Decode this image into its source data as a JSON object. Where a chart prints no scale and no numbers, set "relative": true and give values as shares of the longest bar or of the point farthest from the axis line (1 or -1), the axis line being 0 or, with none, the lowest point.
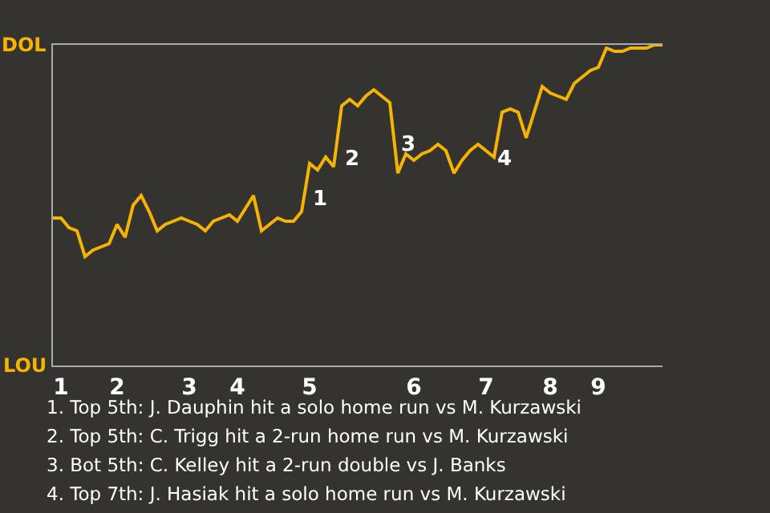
{
  "chart_data": {
    "type": "line",
    "relative": true,
    "categories": [
      null,
      "1",
      null,
      null,
      null,
      null,
      null,
      null,
      "2",
      null,
      null,
      null,
      null,
      null,
      null,
      null,
      null,
      "3",
      null,
      null,
      null,
      null,
      null,
      "4",
      null,
      null,
      null,
      null,
      null,
      null,
      null,
      null,
      "5",
      null,
      null,
      null,
      null,
      null,
      null,
      null,
      null,
      null,
      null,
      null,
      null,
      "6",
      null,
      null,
      null,
      null,
      null,
      null,
      null,
      null,
      "7",
      null,
      null,
      null,
      null,
      null,
      null,
      null,
      "8",
      null,
      null,
      null,
      null,
      null,
      "9",
      null,
      null,
      null,
      null,
      null,
      null,
      null,
      null
    ],
    "series": [
      {
        "color": "#f5b400",
        "values": [
          0.46,
          0.46,
          0.43,
          0.42,
          0.34,
          0.36,
          0.37,
          0.38,
          0.44,
          0.4,
          0.5,
          0.53,
          0.48,
          0.42,
          0.44,
          0.45,
          0.46,
          0.45,
          0.44,
          0.42,
          0.45,
          0.46,
          0.47,
          0.45,
          0.49,
          0.53,
          0.42,
          0.44,
          0.46,
          0.45,
          0.45,
          0.48,
          0.63,
          0.61,
          0.65,
          0.62,
          0.81,
          0.83,
          0.81,
          0.84,
          0.86,
          0.84,
          0.82,
          0.6,
          0.66,
          0.64,
          0.66,
          0.67,
          0.69,
          0.67,
          0.6,
          0.64,
          0.67,
          0.69,
          0.67,
          0.65,
          0.79,
          0.8,
          0.79,
          0.71,
          0.79,
          0.87,
          0.85,
          0.84,
          0.83,
          0.88,
          0.9,
          0.92,
          0.93,
          0.99,
          0.98,
          0.98,
          0.99,
          0.99,
          0.99,
          1,
          1
        ]
      }
    ],
    "marker": "none",
    "line_style": "solid",
    "annotations": [
      "DOL",
      "LOU",
      "1",
      "2",
      "3",
      "4",
      "1. Top 5th: J. Dauphin hit a solo home run vs M. Kurzawski",
      "2. Top 5th: C. Trigg hit a 2-run home run vs M. Kurzawski",
      "3. Bot 5th: C. Kelley hit a 2-run double vs J. Banks",
      "4. Top 7th: J. Hasiak hit a solo home run vs M. Kurzawski"
    ]
  }
}
